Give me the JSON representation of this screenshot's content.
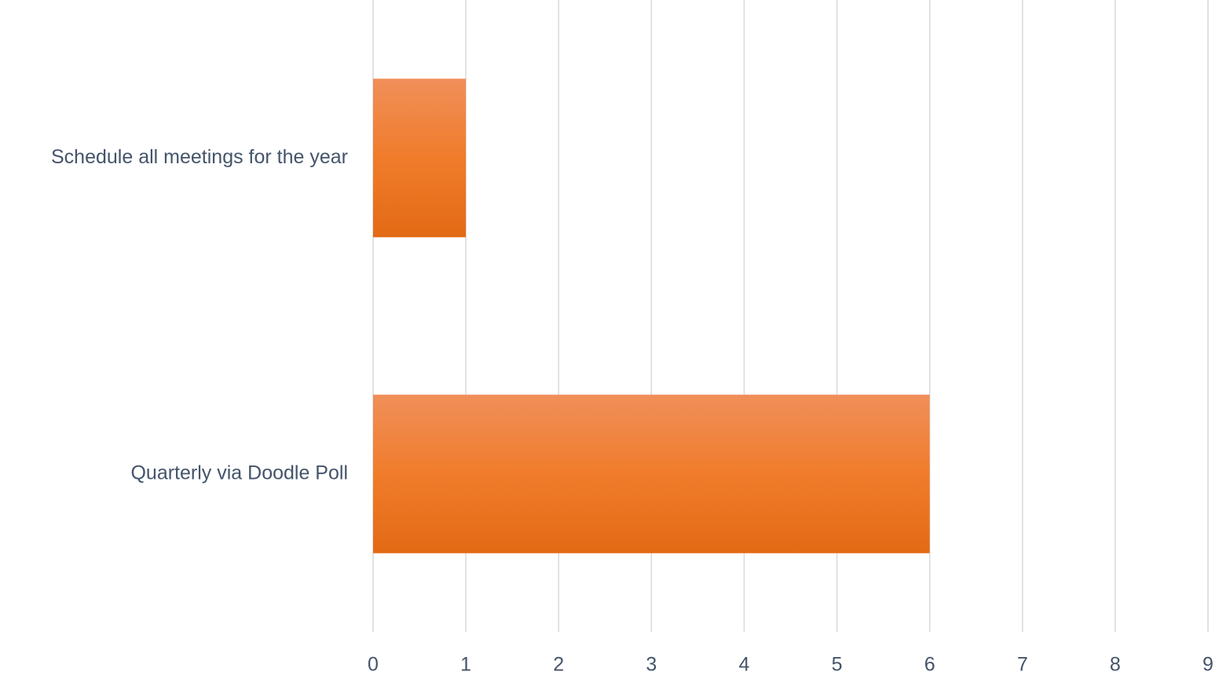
{
  "chart_data": {
    "type": "bar",
    "orientation": "horizontal",
    "categories": [
      "Schedule all meetings for the year",
      "Quarterly via Doodle Poll"
    ],
    "values": [
      1,
      6
    ],
    "xlim": [
      0,
      9
    ],
    "xticks": [
      0,
      1,
      2,
      3,
      4,
      5,
      6,
      7,
      8,
      9
    ],
    "grid": true,
    "legend": "none",
    "bar_color": "#F07C2B",
    "bar_color_light": "#F08F5A",
    "bar_color_dark": "#E36A15",
    "gridline_color": "#D9D9D9",
    "label_color": "#44546A"
  }
}
